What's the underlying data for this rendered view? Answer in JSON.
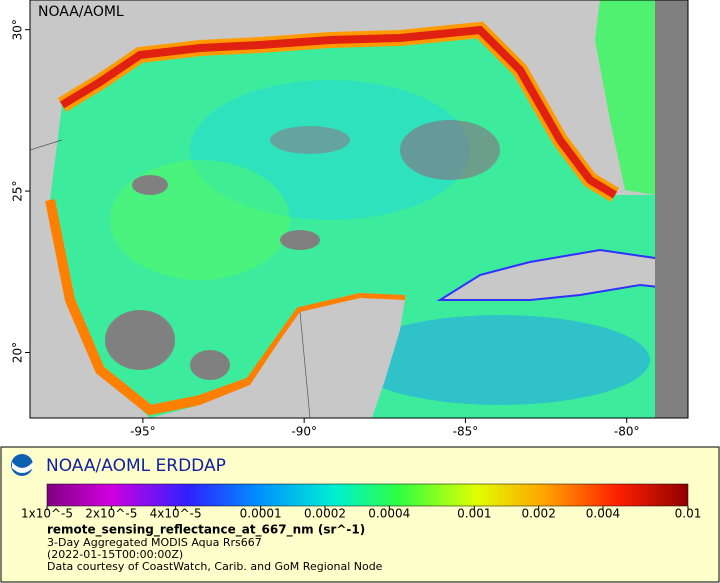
{
  "map": {
    "watermark": "NOAA/AOML",
    "lonlim": [
      -98.5,
      -78.1
    ],
    "latlim": [
      17.97,
      30.92
    ],
    "lonticks": [
      {
        "value": -95,
        "label": "-95°"
      },
      {
        "value": -90,
        "label": "-90°"
      },
      {
        "value": -85,
        "label": "-85°"
      },
      {
        "value": -80,
        "label": "-80°"
      }
    ],
    "latticks": [
      {
        "value": 20,
        "label": "20°"
      },
      {
        "value": 25,
        "label": "25°"
      },
      {
        "value": 30,
        "label": "30°"
      }
    ]
  },
  "legend": {
    "title": "NOAA/AOML ERDDAP",
    "colorbar": {
      "log_scale": true,
      "lim": [
        1e-05,
        0.01
      ],
      "ticks": [
        {
          "value": 1e-05,
          "label": "1x10^-5"
        },
        {
          "value": 2e-05,
          "label": "2x10^-5"
        },
        {
          "value": 4e-05,
          "label": "4x10^-5"
        },
        0.0001,
        0.0002,
        0.0004,
        0.001,
        0.002,
        0.004,
        0.01
      ]
    },
    "variable": "remote_sensing_reflectance_at_667_nm (sr^-1)",
    "lines": [
      "3-Day Aggregated MODIS Aqua Rrs667",
      "(2022-01-15T00:00:00Z)",
      "Data courtesy of CoastWatch, Carib. and GoM Regional Node"
    ]
  }
}
